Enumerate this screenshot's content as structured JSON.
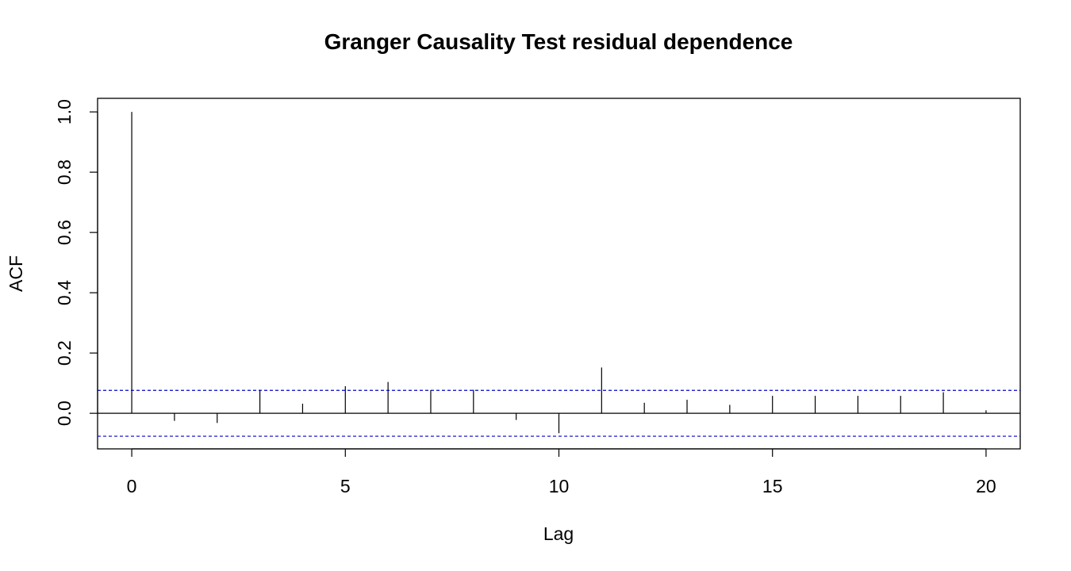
{
  "chart_data": {
    "type": "bar",
    "title": "Granger Causality Test residual dependence",
    "xlabel": "Lag",
    "ylabel": "ACF",
    "xlim": [
      -0.8,
      20.8
    ],
    "ylim": [
      -0.118,
      1.045
    ],
    "x_ticks": [
      0,
      5,
      10,
      15,
      20
    ],
    "x_tick_labels": [
      "0",
      "5",
      "10",
      "15",
      "20"
    ],
    "y_ticks": [
      0.0,
      0.2,
      0.4,
      0.6,
      0.8,
      1.0
    ],
    "y_tick_labels": [
      "0.0",
      "0.2",
      "0.4",
      "0.6",
      "0.8",
      "1.0"
    ],
    "lags": [
      0,
      1,
      2,
      3,
      4,
      5,
      6,
      7,
      8,
      9,
      10,
      11,
      12,
      13,
      14,
      15,
      16,
      17,
      18,
      19,
      20
    ],
    "values": [
      1.0,
      -0.025,
      -0.032,
      0.078,
      0.032,
      0.09,
      0.104,
      0.077,
      0.078,
      -0.022,
      -0.066,
      0.152,
      0.035,
      0.045,
      0.028,
      0.058,
      0.058,
      0.058,
      0.058,
      0.07,
      0.01
    ],
    "confidence_bound": 0.076,
    "confidence_color": "#0000cc",
    "zero_line": true,
    "grid": false
  }
}
